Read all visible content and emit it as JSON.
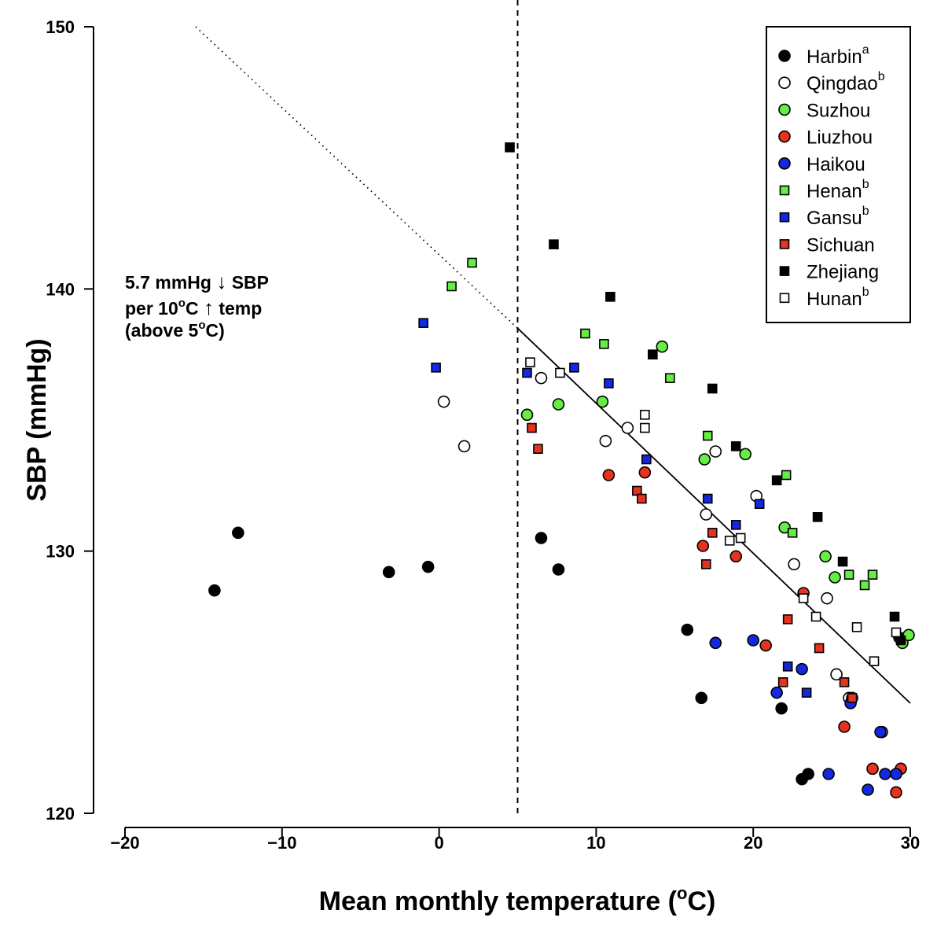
{
  "chart_data": {
    "type": "scatter",
    "xlabel": "Mean monthly temperature (",
    "xlabel_unit_sup": "o",
    "xlabel_unit": "C)",
    "ylabel": "SBP (mmHg)",
    "xlim": [
      -20,
      30
    ],
    "ylim": [
      120,
      150
    ],
    "x_ticks": [
      "−20",
      "−10",
      "0",
      "10",
      "20",
      "30"
    ],
    "x_tick_values": [
      -20,
      -10,
      0,
      10,
      20,
      30
    ],
    "y_ticks": [
      "120",
      "130",
      "140",
      "150"
    ],
    "y_tick_values": [
      120,
      130,
      140,
      150
    ],
    "threshold_x": 5,
    "fit_line": {
      "solid_from": [
        5,
        138.5
      ],
      "solid_to": [
        30,
        124.2
      ],
      "dotted_from": [
        -15.5,
        150
      ],
      "dotted_to": [
        5,
        138.5
      ]
    },
    "annotation": {
      "line1_a": "5.7 mmHg ",
      "line1_arrow": "↓",
      "line1_b": " SBP",
      "line2_a": "per 10",
      "line2_sup": "o",
      "line2_b": "C ",
      "line2_arrow": "↑",
      "line2_c": " temp",
      "line3_a": "(above 5",
      "line3_sup": "o",
      "line3_b": "C)"
    },
    "legend_position": "top-right",
    "series": [
      {
        "name": "Harbin",
        "sup": "a",
        "marker": "circle",
        "fill": "#000000",
        "points": [
          [
            -14.3,
            128.5
          ],
          [
            -12.8,
            130.7
          ],
          [
            -3.2,
            129.2
          ],
          [
            -0.7,
            129.4
          ],
          [
            6.5,
            130.5
          ],
          [
            7.6,
            129.3
          ],
          [
            15.8,
            127.0
          ],
          [
            16.7,
            124.4
          ],
          [
            21.8,
            124.0
          ],
          [
            23.1,
            121.3
          ],
          [
            23.5,
            121.5
          ],
          [
            29.3,
            126.7
          ]
        ]
      },
      {
        "name": "Qingdao",
        "sup": "b",
        "marker": "circle",
        "fill": "#ffffff",
        "points": [
          [
            0.3,
            135.7
          ],
          [
            1.6,
            134.0
          ],
          [
            6.5,
            136.6
          ],
          [
            10.6,
            134.2
          ],
          [
            12.0,
            134.7
          ],
          [
            17.0,
            131.4
          ],
          [
            17.6,
            133.8
          ],
          [
            20.2,
            132.1
          ],
          [
            22.6,
            129.5
          ],
          [
            24.7,
            128.2
          ],
          [
            25.3,
            125.3
          ],
          [
            26.1,
            124.4
          ],
          [
            28.2,
            123.1
          ]
        ]
      },
      {
        "name": "Suzhou",
        "sup": "",
        "marker": "circle",
        "fill": "#66ee44",
        "points": [
          [
            5.6,
            135.2
          ],
          [
            7.6,
            135.6
          ],
          [
            10.4,
            135.7
          ],
          [
            14.2,
            137.8
          ],
          [
            16.9,
            133.5
          ],
          [
            19.5,
            133.7
          ],
          [
            22.0,
            130.9
          ],
          [
            24.6,
            129.8
          ],
          [
            25.2,
            129.0
          ],
          [
            29.5,
            126.5
          ],
          [
            29.9,
            126.8
          ]
        ]
      },
      {
        "name": "Liuzhou",
        "sup": "",
        "marker": "circle",
        "fill": "#e53320",
        "points": [
          [
            10.8,
            132.9
          ],
          [
            13.1,
            133.0
          ],
          [
            16.8,
            130.2
          ],
          [
            18.9,
            129.8
          ],
          [
            20.8,
            126.4
          ],
          [
            23.2,
            128.4
          ],
          [
            25.8,
            123.3
          ],
          [
            26.3,
            124.4
          ],
          [
            27.6,
            121.7
          ],
          [
            29.1,
            120.8
          ],
          [
            29.4,
            121.7
          ]
        ]
      },
      {
        "name": "Haikou",
        "sup": "",
        "marker": "circle",
        "fill": "#1428e0",
        "points": [
          [
            17.6,
            126.5
          ],
          [
            20.0,
            126.6
          ],
          [
            21.5,
            124.6
          ],
          [
            23.1,
            125.5
          ],
          [
            24.8,
            121.5
          ],
          [
            26.2,
            124.2
          ],
          [
            27.3,
            120.9
          ],
          [
            28.1,
            123.1
          ],
          [
            28.4,
            121.5
          ],
          [
            29.1,
            121.5
          ]
        ]
      },
      {
        "name": "Henan",
        "sup": "b",
        "marker": "square",
        "fill": "#66ee44",
        "points": [
          [
            0.8,
            140.1
          ],
          [
            2.1,
            141.0
          ],
          [
            9.3,
            138.3
          ],
          [
            10.5,
            137.9
          ],
          [
            14.7,
            136.6
          ],
          [
            17.1,
            134.4
          ],
          [
            22.1,
            132.9
          ],
          [
            22.5,
            130.7
          ],
          [
            26.1,
            129.1
          ],
          [
            27.1,
            128.7
          ],
          [
            27.6,
            129.1
          ]
        ]
      },
      {
        "name": "Gansu",
        "sup": "b",
        "marker": "square",
        "fill": "#1428e0",
        "points": [
          [
            -1.0,
            138.7
          ],
          [
            -0.2,
            137.0
          ],
          [
            5.6,
            136.8
          ],
          [
            8.6,
            137.0
          ],
          [
            10.8,
            136.4
          ],
          [
            13.2,
            133.5
          ],
          [
            17.1,
            132.0
          ],
          [
            18.9,
            131.0
          ],
          [
            20.4,
            131.8
          ],
          [
            22.2,
            125.6
          ],
          [
            23.4,
            124.6
          ]
        ]
      },
      {
        "name": "Sichuan",
        "sup": "",
        "marker": "square",
        "fill": "#e53320",
        "points": [
          [
            5.9,
            134.7
          ],
          [
            6.3,
            133.9
          ],
          [
            12.6,
            132.3
          ],
          [
            12.9,
            132.0
          ],
          [
            17.0,
            129.5
          ],
          [
            17.4,
            130.7
          ],
          [
            21.9,
            125.0
          ],
          [
            22.2,
            127.4
          ],
          [
            24.2,
            126.3
          ],
          [
            25.8,
            125.0
          ],
          [
            26.3,
            124.4
          ]
        ]
      },
      {
        "name": "Zhejiang",
        "sup": "",
        "marker": "square",
        "fill": "#000000",
        "points": [
          [
            4.5,
            145.4
          ],
          [
            7.3,
            141.7
          ],
          [
            10.9,
            139.7
          ],
          [
            13.6,
            137.5
          ],
          [
            17.4,
            136.2
          ],
          [
            18.9,
            134.0
          ],
          [
            21.5,
            132.7
          ],
          [
            24.1,
            131.3
          ],
          [
            25.7,
            129.6
          ],
          [
            29.0,
            127.5
          ],
          [
            29.4,
            126.6
          ]
        ]
      },
      {
        "name": "Hunan",
        "sup": "b",
        "marker": "square",
        "fill": "#ffffff",
        "points": [
          [
            5.8,
            137.2
          ],
          [
            7.7,
            136.8
          ],
          [
            13.1,
            135.2
          ],
          [
            13.1,
            134.7
          ],
          [
            18.5,
            130.4
          ],
          [
            19.2,
            130.5
          ],
          [
            23.2,
            128.2
          ],
          [
            24.0,
            127.5
          ],
          [
            26.6,
            127.1
          ],
          [
            27.7,
            125.8
          ],
          [
            29.1,
            126.9
          ]
        ]
      }
    ]
  }
}
